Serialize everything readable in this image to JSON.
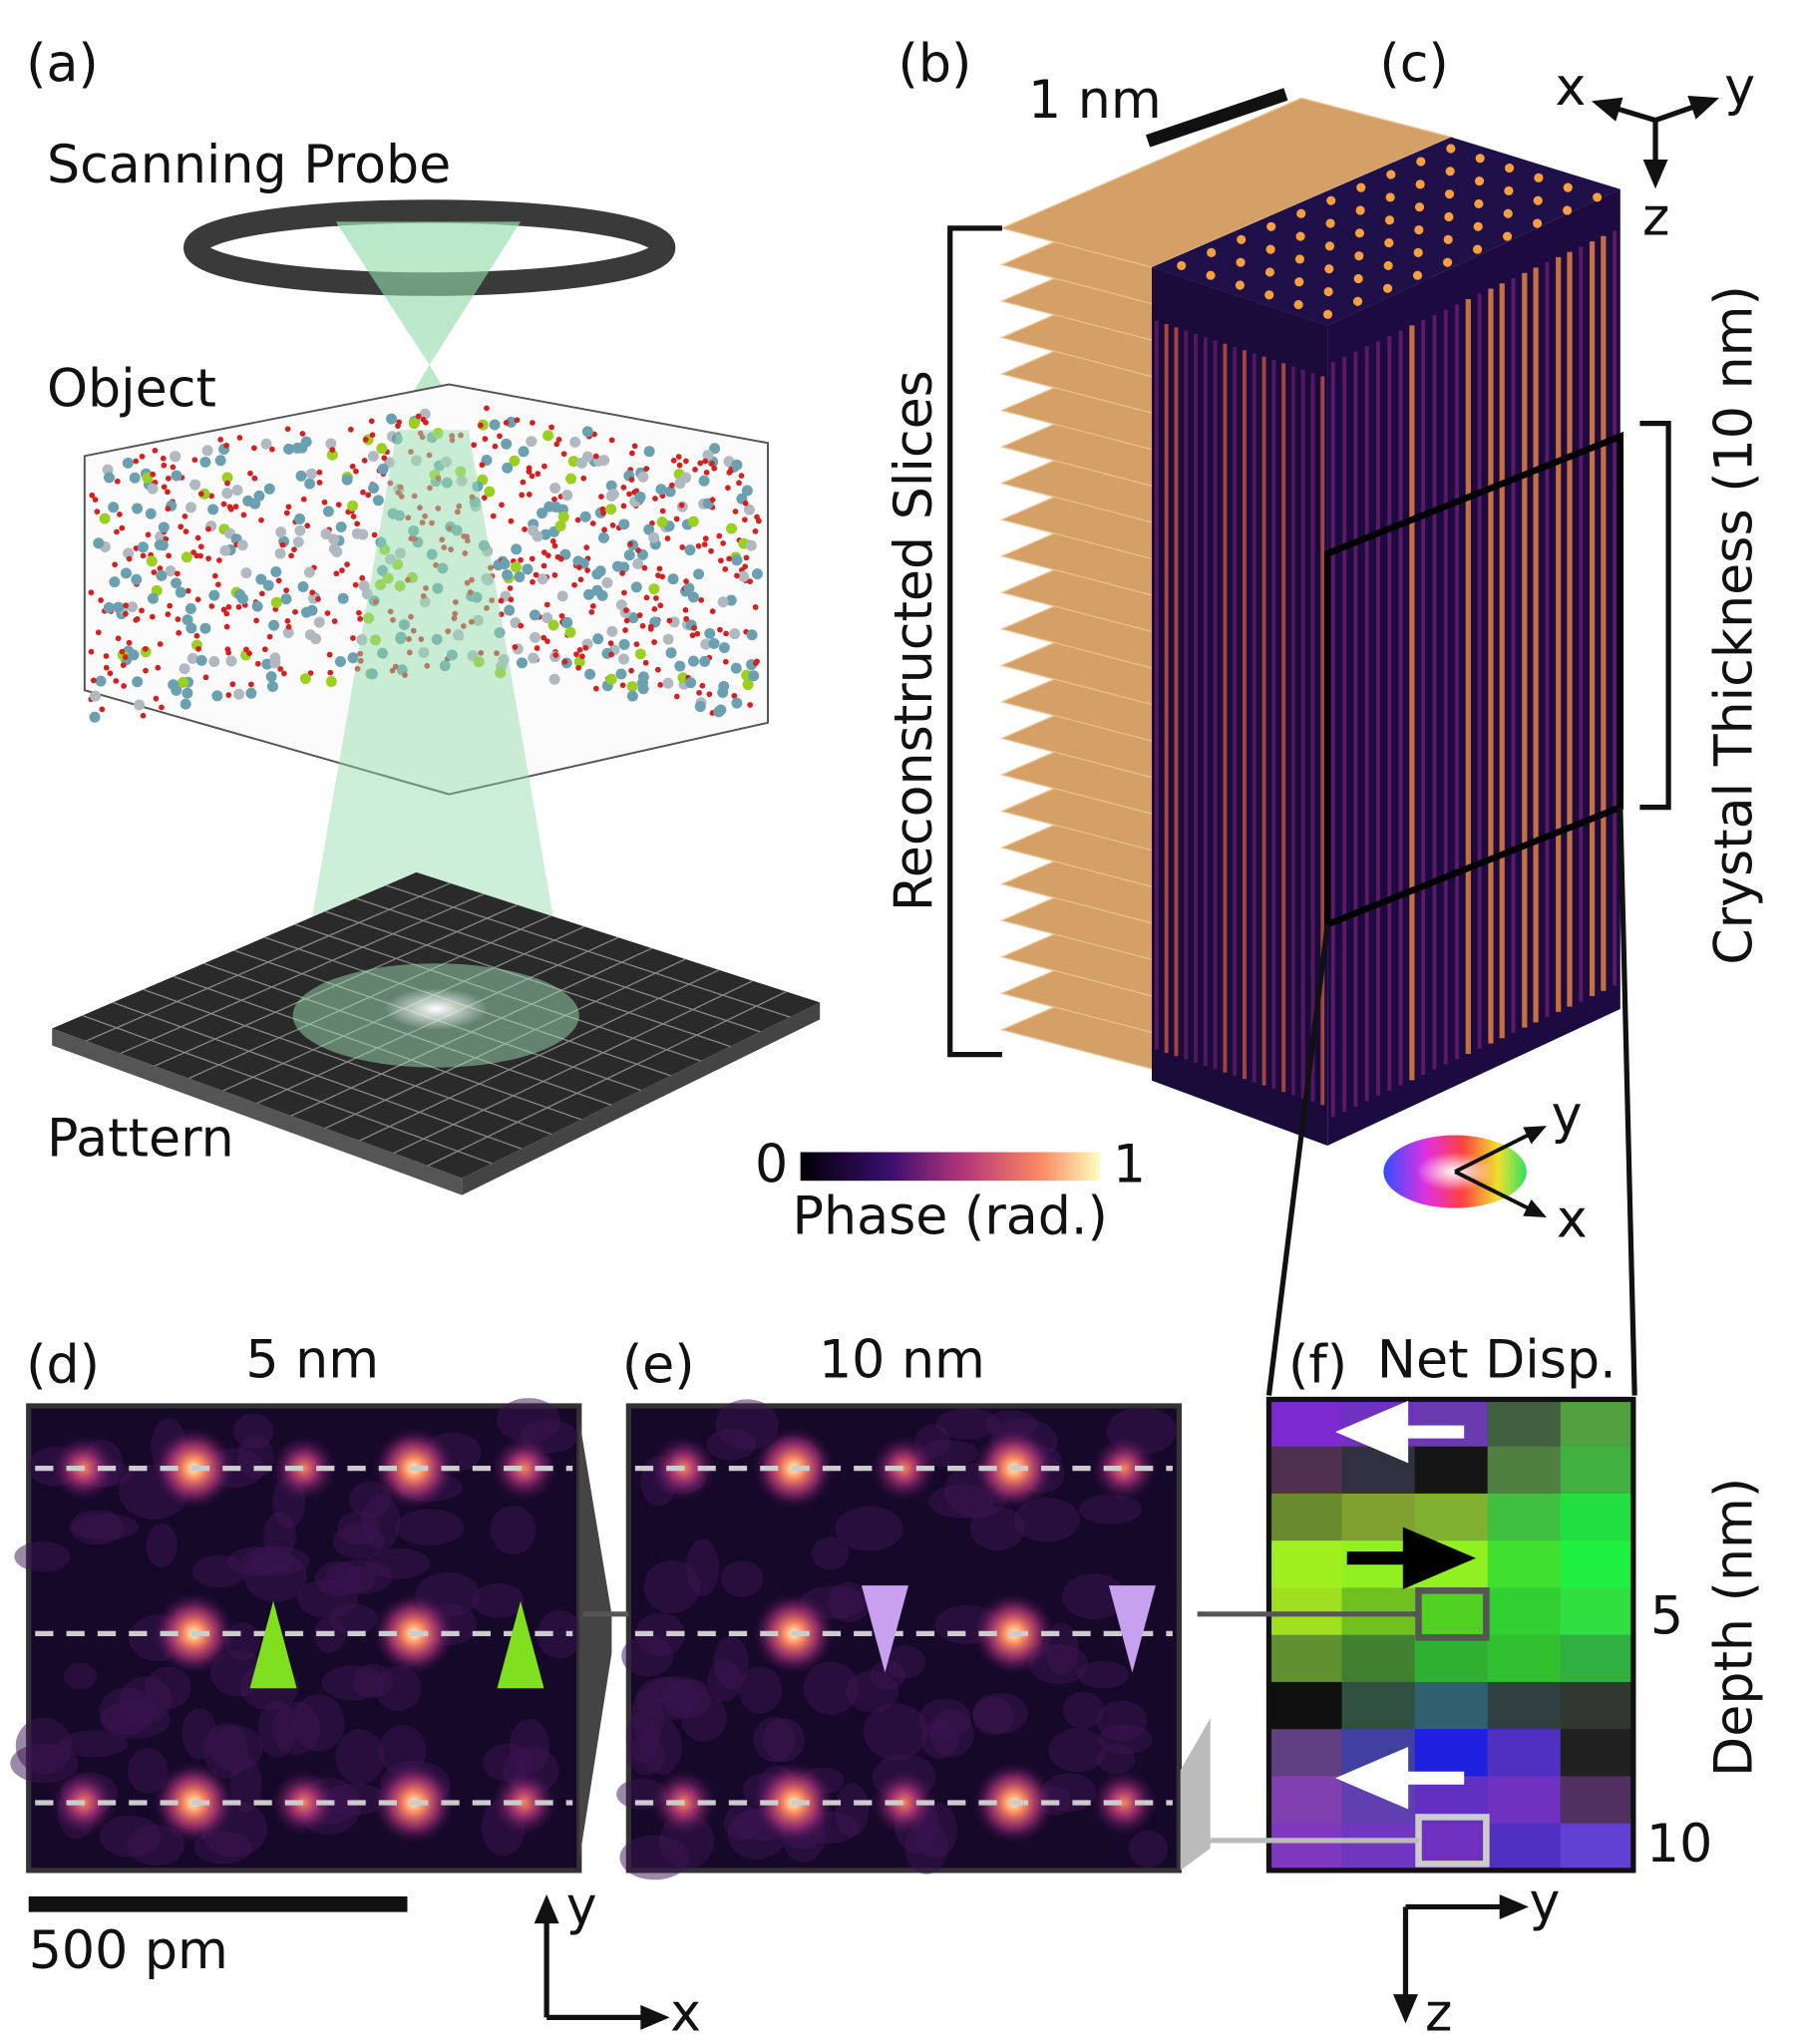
{
  "panels": {
    "a": {
      "label": "(a)",
      "probe": "Scanning Probe",
      "object": "Object",
      "pattern": "Pattern"
    },
    "b": {
      "label": "(b)",
      "scale_bar": "1 nm",
      "bracket": "Reconstructed Slices"
    },
    "c": {
      "label": "(c)",
      "bracket": "Crystal Thickness (10 nm)",
      "axes": [
        "x",
        "y",
        "z"
      ]
    },
    "colorbar": {
      "min": 0,
      "max": 1,
      "title": "Phase (rad.)"
    },
    "color_wheel": {
      "axes": [
        "y",
        "x"
      ]
    },
    "d": {
      "label": "(d)",
      "title": "5 nm",
      "scale_bar": "500 pm",
      "axes": [
        "y",
        "x"
      ]
    },
    "e": {
      "label": "(e)",
      "title": "10 nm"
    },
    "f": {
      "label": "(f)",
      "title": "Net Disp.",
      "axis_title": "Depth (nm)",
      "ticks": [
        5,
        10
      ],
      "axes": [
        "y",
        "z"
      ]
    }
  }
}
